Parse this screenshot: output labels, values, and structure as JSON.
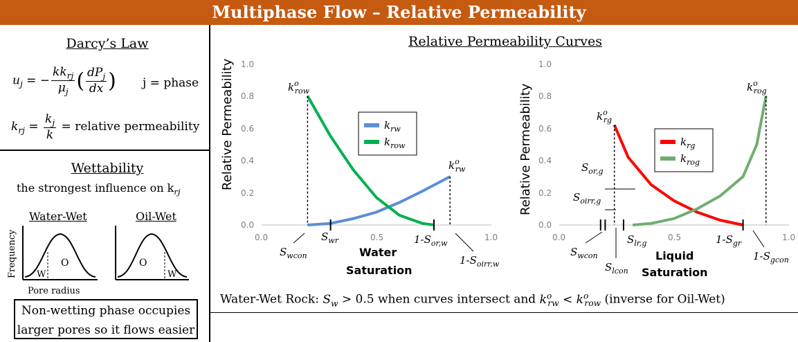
{
  "title": "Multiphase Flow – Relative Permeability",
  "darcy": {
    "heading": "Darcy’s Law",
    "phase_note": "j = phase",
    "relperm_note": "= relative permeability"
  },
  "wettability": {
    "heading": "Wettability",
    "subtitle": "the strongest influence on k",
    "water_wet_label": "Water-Wet",
    "oil_wet_label": "Oil-Wet",
    "y_axis": "Frequency",
    "x_axis": "Pore radius",
    "ww_left": "W",
    "ww_right": "O",
    "ow_left": "O",
    "ow_right": "W",
    "note_line1": "Non-wetting phase occupies",
    "note_line2": "larger pores so it flows easier"
  },
  "curves_heading": "Relative Permeability Curves",
  "bottom_statement": {
    "prefix": "Water-Wet Rock:",
    "middle": "> 0.5 when curves intersect  and",
    "suffix": "(inverse for Oil-Wet)"
  },
  "chart_data": [
    {
      "type": "line",
      "ylabel": "Relative Permeability",
      "xlabel": "Water Saturation",
      "xlabel_line1": "Water",
      "xlabel_line2": "Saturation",
      "xlim": [
        0,
        1
      ],
      "ylim": [
        0,
        1
      ],
      "xticks": [
        "0.0",
        "0.5",
        "1.0"
      ],
      "yticks": [
        "0.0",
        "0.2",
        "0.4",
        "0.6",
        "0.8",
        "1.0"
      ],
      "colors": {
        "krw": "#5b8fd6",
        "krow": "#00b050"
      },
      "series": [
        {
          "name": "k_rw",
          "x": [
            0.2,
            0.3,
            0.4,
            0.5,
            0.6,
            0.7,
            0.82
          ],
          "y": [
            0.0,
            0.01,
            0.04,
            0.08,
            0.14,
            0.21,
            0.3
          ]
        },
        {
          "name": "k_row",
          "x": [
            0.2,
            0.3,
            0.4,
            0.5,
            0.6,
            0.7,
            0.75
          ],
          "y": [
            0.8,
            0.55,
            0.34,
            0.17,
            0.06,
            0.01,
            0.0
          ]
        }
      ],
      "markers": {
        "Swcon": 0.2,
        "Swr": 0.3,
        "1-Sor_w": 0.75,
        "1-Soirr_w": 0.82
      },
      "endpoints": {
        "krow_o": 0.8,
        "krw_o": 0.3
      }
    },
    {
      "type": "line",
      "ylabel": "Relative Permeability",
      "xlabel": "Liquid Saturation",
      "xlabel_line1": "Liquid",
      "xlabel_line2": "Saturation",
      "xlim": [
        0,
        1
      ],
      "ylim": [
        0,
        1
      ],
      "xticks": [
        "0.0",
        "0.5",
        "1.0"
      ],
      "yticks": [
        "0.0",
        "0.2",
        "0.4",
        "0.6",
        "0.8",
        "1.0"
      ],
      "colors": {
        "krg": "#ff0000",
        "krog": "#70ad6f"
      },
      "series": [
        {
          "name": "k_rg",
          "x": [
            0.24,
            0.3,
            0.4,
            0.5,
            0.6,
            0.7,
            0.8
          ],
          "y": [
            0.62,
            0.42,
            0.25,
            0.15,
            0.08,
            0.03,
            0.0
          ]
        },
        {
          "name": "k_rog",
          "x": [
            0.32,
            0.4,
            0.5,
            0.6,
            0.7,
            0.8,
            0.86,
            0.9
          ],
          "y": [
            0.0,
            0.01,
            0.04,
            0.1,
            0.18,
            0.3,
            0.5,
            0.8
          ]
        }
      ],
      "markers": {
        "Swcon": 0.18,
        "Soirr_g": 0.2,
        "Slcon": 0.24,
        "Slr_g": 0.28,
        "1-Sgr": 0.8,
        "1-Sgcon": 0.9
      },
      "endpoints": {
        "krg_o": 0.62,
        "krog_o": 0.8
      }
    }
  ]
}
